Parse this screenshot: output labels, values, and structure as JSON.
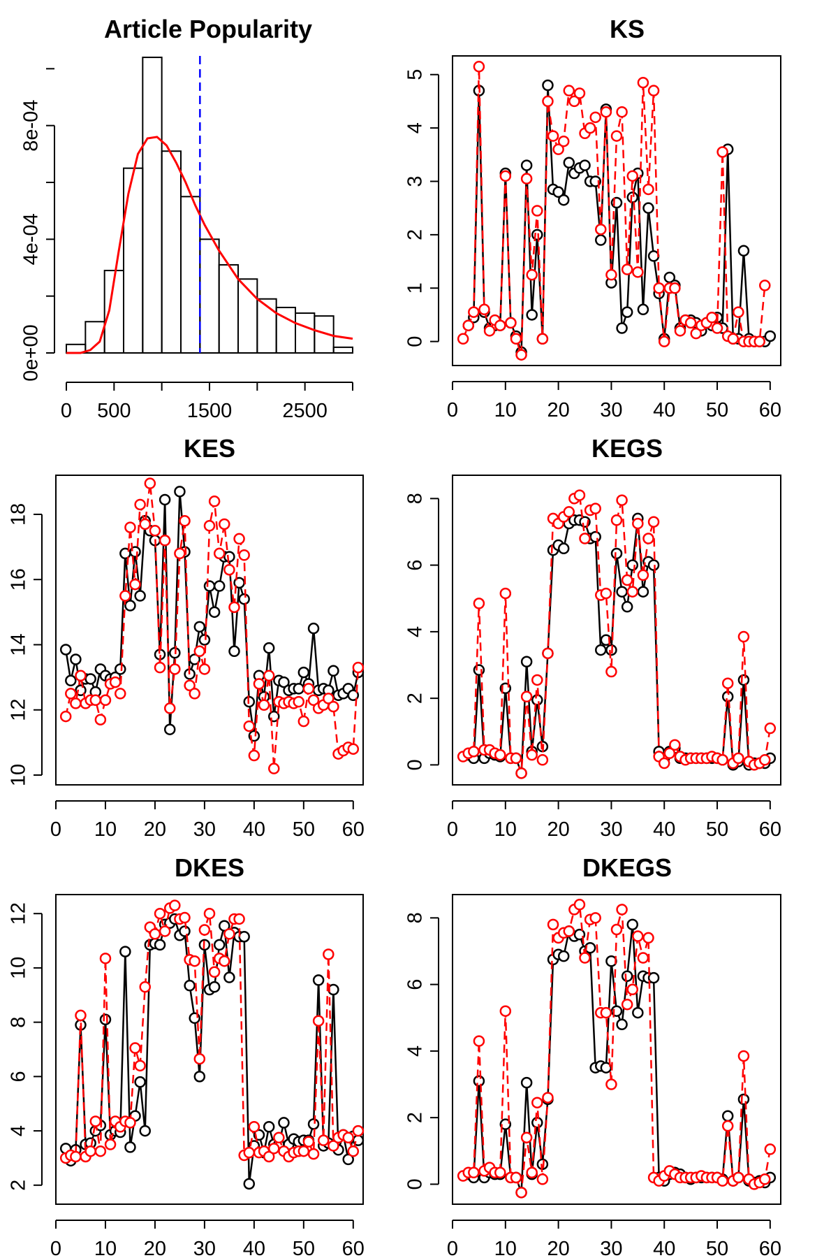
{
  "chart_data": [
    {
      "type": "histogram",
      "title": "Article Popularity",
      "xlabel": "",
      "ylabel": "",
      "xlim": [
        0,
        3000
      ],
      "ylim": [
        0,
        0.00105
      ],
      "x_ticks": [
        0,
        500,
        1500,
        2500
      ],
      "y_ticks": [
        0,
        0.0004,
        0.0008
      ],
      "x_tick_labels": [
        "0",
        "500",
        "1500",
        "2500"
      ],
      "y_tick_labels": [
        "0e+00",
        "4e-04",
        "8e-04"
      ],
      "bins": [
        {
          "x0": 0,
          "x1": 200,
          "density": 3e-05
        },
        {
          "x0": 200,
          "x1": 400,
          "density": 0.00011
        },
        {
          "x0": 400,
          "x1": 600,
          "density": 0.00029
        },
        {
          "x0": 600,
          "x1": 800,
          "density": 0.00065
        },
        {
          "x0": 800,
          "x1": 1000,
          "density": 0.00104
        },
        {
          "x0": 1000,
          "x1": 1200,
          "density": 0.00071
        },
        {
          "x0": 1200,
          "x1": 1400,
          "density": 0.00055
        },
        {
          "x0": 1400,
          "x1": 1600,
          "density": 0.0004
        },
        {
          "x0": 1600,
          "x1": 1800,
          "density": 0.00031
        },
        {
          "x0": 1800,
          "x1": 2000,
          "density": 0.00026
        },
        {
          "x0": 2000,
          "x1": 2200,
          "density": 0.00019
        },
        {
          "x0": 2200,
          "x1": 2400,
          "density": 0.00016
        },
        {
          "x0": 2400,
          "x1": 2600,
          "density": 0.00014
        },
        {
          "x0": 2600,
          "x1": 2800,
          "density": 0.00013
        },
        {
          "x0": 2800,
          "x1": 3000,
          "density": 2e-05
        }
      ],
      "density_curve": {
        "color": "#ff0000",
        "x": [
          0,
          150,
          250,
          350,
          450,
          550,
          650,
          750,
          850,
          950,
          1050,
          1150,
          1250,
          1350,
          1450,
          1600,
          1800,
          2000,
          2200,
          2400,
          2600,
          2800,
          3000
        ],
        "y": [
          0.0,
          0.0,
          1e-05,
          4e-05,
          0.00015,
          0.00036,
          0.00056,
          0.0007,
          0.000755,
          0.00076,
          0.00073,
          0.00067,
          0.0006,
          0.00052,
          0.00045,
          0.00036,
          0.00026,
          0.00019,
          0.00014,
          0.000105,
          8e-05,
          6e-05,
          5e-05
        ]
      },
      "vline": {
        "x": 1400,
        "color": "#0000ff",
        "style": "dashed"
      }
    },
    {
      "type": "line",
      "title": "KS",
      "xlim": [
        0,
        62
      ],
      "ylim": [
        -0.45,
        5.35
      ],
      "x_ticks": [
        0,
        10,
        20,
        30,
        40,
        50,
        60
      ],
      "y_ticks": [
        0,
        1,
        2,
        3,
        4,
        5
      ],
      "x_tick_labels": [
        "0",
        "10",
        "20",
        "30",
        "40",
        "50",
        "60"
      ],
      "y_tick_labels": [
        "0",
        "1",
        "2",
        "3",
        "4",
        "5"
      ],
      "x_start": 2,
      "series": [
        {
          "color": "#000000",
          "dashed": false,
          "values": [
            null,
            0.3,
            0.45,
            4.7,
            0.55,
            0.25,
            0.3,
            0.3,
            3.15,
            0.35,
            0.1,
            -0.2,
            3.3,
            0.5,
            2.0,
            0.05,
            4.8,
            2.85,
            2.8,
            2.65,
            3.35,
            3.15,
            3.25,
            3.3,
            3.0,
            3.0,
            1.9,
            4.35,
            1.1,
            2.6,
            0.25,
            0.55,
            2.7,
            3.15,
            0.6,
            2.5,
            1.6,
            0.9,
            0.05,
            1.2,
            1.05,
            0.25,
            0.4,
            0.4,
            0.35,
            0.2,
            0.35,
            0.3,
            0.45,
            0.25,
            3.6,
            0.05,
            0.05,
            1.7,
            0.05,
            0.0,
            0.0,
            0.0,
            0.1
          ]
        },
        {
          "color": "#ff0000",
          "dashed": true,
          "values": [
            0.05,
            0.3,
            0.55,
            5.15,
            0.6,
            0.2,
            0.4,
            0.3,
            3.1,
            0.35,
            0.05,
            -0.25,
            3.05,
            1.25,
            2.45,
            0.05,
            4.5,
            3.85,
            3.6,
            3.75,
            4.7,
            4.5,
            4.65,
            3.9,
            4.0,
            4.2,
            2.1,
            4.3,
            1.25,
            3.85,
            4.3,
            1.35,
            3.1,
            1.3,
            4.85,
            2.85,
            4.7,
            1.0,
            0.0,
            1.0,
            1.0,
            0.2,
            0.4,
            0.35,
            0.15,
            0.3,
            0.35,
            0.45,
            0.25,
            3.55,
            0.1,
            0.05,
            0.55,
            0.0,
            0.0,
            0.0,
            0.0,
            1.05,
            null
          ]
        }
      ]
    },
    {
      "type": "line",
      "title": "KES",
      "xlim": [
        0,
        62
      ],
      "ylim": [
        9.7,
        19.2
      ],
      "x_ticks": [
        0,
        10,
        20,
        30,
        40,
        50,
        60
      ],
      "y_ticks": [
        10,
        12,
        14,
        16,
        18
      ],
      "x_tick_labels": [
        "0",
        "10",
        "20",
        "30",
        "40",
        "50",
        "60"
      ],
      "y_tick_labels": [
        "10",
        "12",
        "14",
        "16",
        "18"
      ],
      "x_start": 2,
      "series": [
        {
          "color": "#000000",
          "dashed": false,
          "values": [
            13.85,
            12.9,
            13.55,
            12.6,
            12.95,
            12.95,
            12.55,
            13.25,
            13.05,
            12.95,
            13.0,
            13.25,
            16.8,
            15.2,
            16.85,
            15.5,
            17.8,
            17.5,
            17.2,
            13.7,
            18.45,
            11.4,
            13.75,
            18.7,
            16.85,
            13.1,
            13.55,
            14.55,
            14.15,
            15.8,
            15.0,
            15.8,
            16.7,
            16.7,
            13.8,
            15.9,
            15.4,
            12.25,
            11.2,
            13.05,
            12.4,
            13.9,
            11.8,
            12.9,
            12.85,
            12.6,
            12.65,
            12.65,
            13.15,
            12.8,
            14.5,
            12.6,
            12.65,
            12.6,
            13.2,
            12.45,
            12.5,
            12.65,
            12.45,
            13.15
          ]
        },
        {
          "color": "#ff0000",
          "dashed": true,
          "values": [
            11.8,
            12.5,
            12.2,
            13.05,
            12.2,
            12.3,
            12.3,
            11.7,
            12.3,
            12.8,
            12.85,
            12.5,
            15.5,
            17.6,
            15.85,
            18.3,
            17.7,
            18.95,
            17.5,
            13.3,
            17.2,
            12.05,
            13.25,
            16.8,
            17.8,
            12.75,
            12.5,
            13.8,
            13.25,
            17.65,
            18.4,
            16.8,
            17.7,
            16.3,
            15.15,
            17.25,
            16.75,
            11.5,
            10.6,
            12.8,
            12.15,
            13.05,
            10.2,
            12.25,
            12.2,
            12.25,
            12.2,
            12.25,
            11.65,
            12.65,
            12.3,
            12.05,
            12.15,
            12.35,
            12.1,
            10.65,
            10.75,
            10.85,
            10.8,
            13.3
          ]
        }
      ]
    },
    {
      "type": "line",
      "title": "KEGS",
      "xlim": [
        0,
        62
      ],
      "ylim": [
        -0.6,
        8.7
      ],
      "x_ticks": [
        0,
        10,
        20,
        30,
        40,
        50,
        60
      ],
      "y_ticks": [
        0,
        2,
        4,
        6,
        8
      ],
      "x_tick_labels": [
        "0",
        "10",
        "20",
        "30",
        "40",
        "50",
        "60"
      ],
      "y_tick_labels": [
        "0",
        "2",
        "4",
        "6",
        "8"
      ],
      "x_start": 2,
      "series": [
        {
          "color": "#000000",
          "dashed": false,
          "values": [
            null,
            0.3,
            0.2,
            2.85,
            0.2,
            0.35,
            0.3,
            0.25,
            2.3,
            0.2,
            0.2,
            -0.25,
            3.1,
            0.4,
            1.95,
            0.55,
            3.35,
            6.45,
            6.6,
            6.5,
            7.25,
            7.35,
            7.35,
            7.3,
            6.8,
            6.85,
            3.45,
            3.75,
            3.45,
            6.35,
            5.2,
            4.75,
            6.0,
            7.4,
            5.2,
            6.1,
            6.0,
            0.4,
            0.2,
            0.4,
            0.5,
            0.2,
            0.2,
            0.2,
            0.2,
            0.2,
            0.2,
            0.2,
            0.2,
            0.15,
            2.05,
            0.0,
            0.1,
            2.55,
            0.0,
            0.05,
            0.05,
            0.05,
            0.2
          ]
        },
        {
          "color": "#ff0000",
          "dashed": true,
          "values": [
            0.25,
            0.35,
            0.4,
            4.85,
            0.45,
            0.45,
            0.35,
            0.3,
            5.15,
            0.2,
            0.2,
            -0.25,
            2.05,
            0.3,
            2.55,
            0.15,
            3.35,
            7.4,
            7.25,
            7.45,
            7.6,
            8.0,
            8.1,
            6.8,
            7.65,
            7.7,
            5.1,
            5.15,
            2.8,
            7.35,
            7.95,
            5.55,
            5.2,
            7.25,
            5.7,
            6.8,
            7.3,
            0.25,
            0.05,
            0.35,
            0.6,
            0.25,
            0.15,
            0.2,
            0.2,
            0.2,
            0.2,
            0.25,
            0.2,
            0.15,
            2.45,
            0.05,
            0.2,
            3.85,
            0.1,
            0.0,
            0.05,
            0.15,
            1.1,
            null
          ]
        }
      ]
    },
    {
      "type": "line",
      "title": "DKES",
      "xlim": [
        0,
        62
      ],
      "ylim": [
        1.3,
        12.7
      ],
      "x_ticks": [
        0,
        10,
        20,
        30,
        40,
        50,
        60
      ],
      "y_ticks": [
        2,
        4,
        6,
        8,
        10,
        12
      ],
      "x_tick_labels": [
        "0",
        "10",
        "20",
        "30",
        "40",
        "50",
        "60"
      ],
      "y_tick_labels": [
        "2",
        "4",
        "6",
        "8",
        "10",
        "12"
      ],
      "x_start": 2,
      "series": [
        {
          "color": "#000000",
          "dashed": false,
          "values": [
            3.35,
            2.9,
            3.3,
            7.9,
            3.5,
            3.55,
            4.0,
            4.2,
            8.1,
            3.85,
            4.0,
            3.95,
            10.6,
            3.4,
            4.55,
            5.8,
            4.0,
            10.85,
            10.9,
            10.85,
            11.6,
            11.65,
            11.8,
            11.2,
            11.35,
            9.35,
            8.15,
            6.0,
            10.85,
            9.2,
            9.3,
            10.85,
            11.55,
            9.65,
            11.3,
            11.15,
            11.15,
            2.05,
            3.45,
            3.85,
            3.2,
            4.15,
            3.5,
            3.5,
            4.3,
            3.5,
            3.7,
            3.6,
            3.65,
            3.65,
            4.25,
            9.55,
            3.45,
            3.55,
            9.2,
            3.3,
            3.85,
            2.95,
            3.8,
            3.65
          ]
        },
        {
          "color": "#ff0000",
          "dashed": true,
          "values": [
            3.0,
            3.1,
            3.05,
            8.25,
            3.05,
            3.25,
            4.35,
            3.25,
            10.35,
            3.5,
            4.35,
            4.15,
            4.35,
            4.3,
            7.05,
            6.4,
            9.3,
            11.5,
            11.25,
            12.0,
            11.35,
            12.2,
            12.3,
            11.8,
            11.85,
            10.3,
            10.25,
            6.65,
            11.4,
            12.0,
            9.85,
            10.35,
            10.25,
            11.25,
            11.8,
            11.8,
            3.1,
            3.2,
            4.15,
            3.2,
            3.25,
            3.05,
            3.35,
            3.75,
            3.25,
            3.05,
            3.2,
            3.25,
            3.25,
            3.6,
            3.15,
            8.05,
            3.65,
            10.5,
            3.45,
            3.75,
            3.85,
            3.75,
            3.25,
            4.0
          ]
        }
      ]
    },
    {
      "type": "line",
      "title": "DKEGS",
      "xlim": [
        0,
        62
      ],
      "ylim": [
        -0.6,
        8.7
      ],
      "x_ticks": [
        0,
        10,
        20,
        30,
        40,
        50,
        60
      ],
      "y_ticks": [
        0,
        2,
        4,
        6,
        8
      ],
      "x_tick_labels": [
        "0",
        "10",
        "20",
        "30",
        "40",
        "50",
        "60"
      ],
      "y_tick_labels": [
        "0",
        "2",
        "4",
        "6",
        "8"
      ],
      "x_start": 2,
      "series": [
        {
          "color": "#000000",
          "dashed": false,
          "values": [
            null,
            0.3,
            0.2,
            3.1,
            0.2,
            0.35,
            0.3,
            0.3,
            1.8,
            0.2,
            0.2,
            -0.25,
            3.05,
            0.3,
            1.85,
            0.6,
            2.55,
            6.75,
            6.9,
            6.85,
            7.6,
            7.45,
            7.5,
            7.0,
            7.1,
            3.5,
            3.55,
            3.5,
            6.7,
            5.2,
            4.8,
            6.25,
            7.8,
            5.15,
            6.25,
            6.2,
            6.2,
            0.2,
            0.1,
            0.3,
            0.35,
            0.3,
            0.2,
            0.15,
            0.2,
            0.2,
            0.2,
            0.2,
            0.2,
            0.15,
            2.05,
            0.1,
            0.2,
            2.55,
            0.1,
            0.05,
            0.1,
            0.05,
            0.2
          ]
        },
        {
          "color": "#ff0000",
          "dashed": true,
          "values": [
            0.25,
            0.35,
            0.35,
            4.3,
            0.4,
            0.5,
            0.35,
            0.35,
            5.2,
            0.2,
            0.2,
            -0.25,
            1.4,
            0.35,
            2.45,
            0.15,
            2.6,
            7.8,
            7.4,
            7.55,
            7.6,
            8.25,
            8.4,
            6.8,
            7.95,
            8.0,
            5.15,
            5.15,
            3.0,
            7.65,
            8.25,
            5.4,
            5.85,
            7.45,
            6.8,
            7.4,
            0.2,
            0.1,
            0.25,
            0.4,
            0.3,
            0.2,
            0.2,
            0.2,
            0.2,
            0.25,
            0.2,
            0.2,
            0.2,
            0.1,
            1.75,
            0.1,
            0.2,
            3.85,
            0.15,
            0.0,
            0.05,
            0.15,
            1.05,
            null
          ]
        }
      ]
    }
  ]
}
